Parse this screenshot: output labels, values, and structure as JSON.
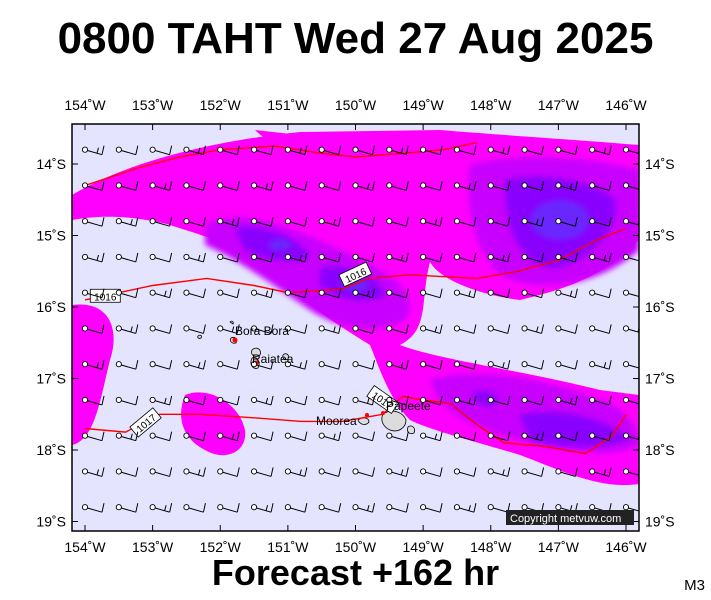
{
  "title": "0800 TAHT Wed 27 Aug 2025",
  "forecast_label": "Forecast +162 hr",
  "model_label": "M3",
  "copyright": "Copyright metvuw.com",
  "colors": {
    "background": "#e4e4ff",
    "rain_light": "#ff00ff",
    "rain_medium": "#c800ff",
    "rain_heavy": "#8a00ff",
    "rain_very_heavy": "#6a28ff",
    "isobar": "#ff0000",
    "land": "#dcdcdc",
    "wind": "#000000"
  },
  "axes": {
    "lon_labels": [
      "154˚W",
      "153˚W",
      "152˚W",
      "151˚W",
      "150˚W",
      "149˚W",
      "148˚W",
      "147˚W",
      "146˚W"
    ],
    "lat_labels": [
      "14˚S",
      "15˚S",
      "16˚S",
      "17˚S",
      "18˚S",
      "19˚S"
    ],
    "lon_range": [
      -154,
      -146
    ],
    "lat_range": [
      -19,
      -13.7
    ]
  },
  "places": [
    {
      "name": "Bora Bora",
      "lon": -151.75,
      "lat": -16.5
    },
    {
      "name": "Raiatea",
      "lon": -151.45,
      "lat": -16.8
    },
    {
      "name": "Moorea",
      "lon": -149.85,
      "lat": -17.53
    },
    {
      "name": "Papeete",
      "lon": -149.57,
      "lat": -17.53
    }
  ],
  "isobars": [
    {
      "label": "1016",
      "points": [
        [
          -154,
          -14.3
        ],
        [
          -153.2,
          -14.05
        ],
        [
          -152.6,
          -13.9
        ],
        [
          -152.0,
          -13.8
        ],
        [
          -151.2,
          -13.75
        ],
        [
          -150.5,
          -13.85
        ],
        [
          -150.0,
          -13.9
        ],
        [
          -149.3,
          -13.85
        ],
        [
          -148.7,
          -13.8
        ],
        [
          -148.2,
          -13.7
        ]
      ]
    },
    {
      "label": "1016",
      "points": [
        [
          -154,
          -15.9
        ],
        [
          -153.5,
          -15.8
        ],
        [
          -153.0,
          -15.7
        ],
        [
          -152.2,
          -15.6
        ],
        [
          -151.5,
          -15.7
        ],
        [
          -151.0,
          -15.8
        ],
        [
          -150.2,
          -15.75
        ],
        [
          -149.8,
          -15.6
        ],
        [
          -149.2,
          -15.55
        ],
        [
          -148.2,
          -15.6
        ],
        [
          -147.6,
          -15.5
        ],
        [
          -147.0,
          -15.35
        ],
        [
          -146.4,
          -15.05
        ],
        [
          -146,
          -14.9
        ]
      ]
    },
    {
      "label": "1017",
      "points": [
        [
          -154,
          -17.7
        ],
        [
          -153.4,
          -17.75
        ],
        [
          -152.9,
          -17.5
        ],
        [
          -152.3,
          -17.5
        ],
        [
          -151.5,
          -17.55
        ],
        [
          -150.8,
          -17.6
        ],
        [
          -150.2,
          -17.6
        ],
        [
          -149.6,
          -17.5
        ],
        [
          -149.3,
          -17.25
        ],
        [
          -149.0,
          -17.3
        ],
        [
          -148.6,
          -17.35
        ],
        [
          -148.2,
          -17.65
        ],
        [
          -147.8,
          -17.9
        ],
        [
          -147.2,
          -17.95
        ],
        [
          -146.6,
          -18.05
        ],
        [
          -146.2,
          -17.8
        ],
        [
          -146,
          -17.5
        ]
      ]
    }
  ],
  "wind_grid": {
    "lon_start": -154,
    "lon_step": 0.5,
    "lat_start": -13.8,
    "lat_step": -0.5,
    "direction": "east-southeast"
  }
}
